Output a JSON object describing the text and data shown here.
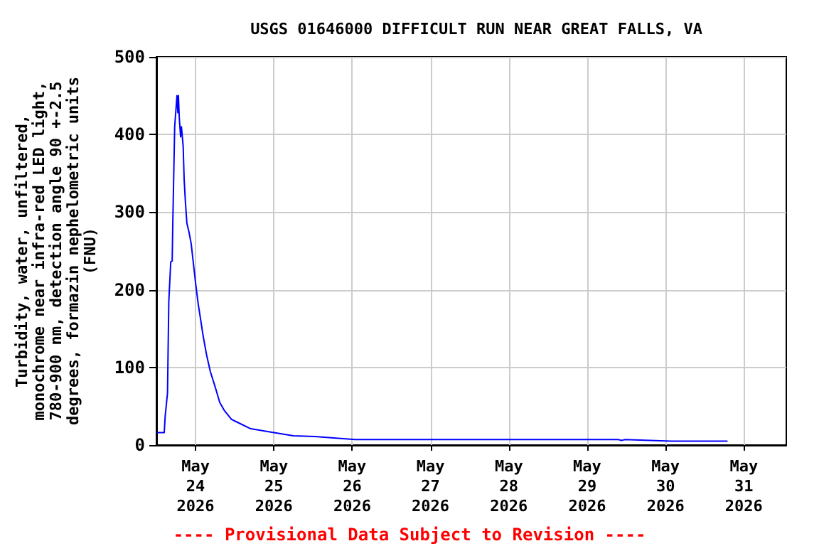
{
  "chart_data": {
    "type": "line",
    "title": "USGS 01646000 DIFFICULT RUN NEAR GREAT FALLS, VA",
    "ylabel": "Turbidity, water, unfiltered,\nmonochrome near infra-red LED light,\n780-900 nm, detection angle 90 +-2.5\ndegrees, formazin nephelometric units\n(FNU)",
    "annotations": [
      "---- Provisional Data Subject to Revision ----"
    ],
    "x": [
      "2026-05-23T12:12",
      "2026-05-23T14:24",
      "2026-05-23T14:40",
      "2026-05-23T15:24",
      "2026-05-23T15:48",
      "2026-05-23T16:24",
      "2026-05-23T16:50",
      "2026-05-23T17:00",
      "2026-05-23T17:36",
      "2026-05-23T18:18",
      "2026-05-23T18:35",
      "2026-05-23T18:45",
      "2026-05-23T19:00",
      "2026-05-23T19:25",
      "2026-05-23T19:40",
      "2026-05-23T20:12",
      "2026-05-23T20:30",
      "2026-05-23T20:55",
      "2026-05-23T21:20",
      "2026-05-23T22:00",
      "2026-05-23T22:40",
      "2026-05-23T23:10",
      "2026-05-24T00:00",
      "2026-05-24T00:50",
      "2026-05-24T01:30",
      "2026-05-24T02:18",
      "2026-05-24T03:20",
      "2026-05-24T04:30",
      "2026-05-24T06:00",
      "2026-05-24T07:24",
      "2026-05-24T08:54",
      "2026-05-24T11:00",
      "2026-05-24T12:30",
      "2026-05-24T16:54",
      "2026-05-24T22:42",
      "2026-05-25T06:00",
      "2026-05-25T12:30",
      "2026-05-26T00:53",
      "2026-05-29T09:36",
      "2026-05-29T10:30",
      "2026-05-29T11:30",
      "2026-05-30T01:36",
      "2026-05-30T19:00"
    ],
    "series": [
      {
        "color": "#0000ff",
        "values": [
          16,
          16,
          36,
          67,
          185,
          236,
          237,
          280,
          410,
          450,
          428,
          450,
          422,
          397,
          410,
          385,
          342,
          311,
          286,
          274,
          259,
          240,
          209,
          181,
          163,
          141,
          117,
          95,
          75,
          55,
          44,
          33,
          30,
          21,
          17,
          12,
          11,
          7,
          7,
          6,
          7,
          5,
          5
        ]
      }
    ],
    "xlim": [
      "2026-05-23T12:00",
      "2026-05-31T13:00"
    ],
    "xticks": [
      {
        "value": "2026-05-24",
        "label": "May\n24\n2026"
      },
      {
        "value": "2026-05-25",
        "label": "May\n25\n2026"
      },
      {
        "value": "2026-05-26",
        "label": "May\n26\n2026"
      },
      {
        "value": "2026-05-27",
        "label": "May\n27\n2026"
      },
      {
        "value": "2026-05-28",
        "label": "May\n28\n2026"
      },
      {
        "value": "2026-05-29",
        "label": "May\n29\n2026"
      },
      {
        "value": "2026-05-30",
        "label": "May\n30\n2026"
      },
      {
        "value": "2026-05-31",
        "label": "May\n31\n2026"
      }
    ],
    "ylim": [
      0,
      500
    ],
    "yticks": [
      0,
      100,
      200,
      300,
      400,
      500
    ],
    "grid": true,
    "marker": "none"
  }
}
